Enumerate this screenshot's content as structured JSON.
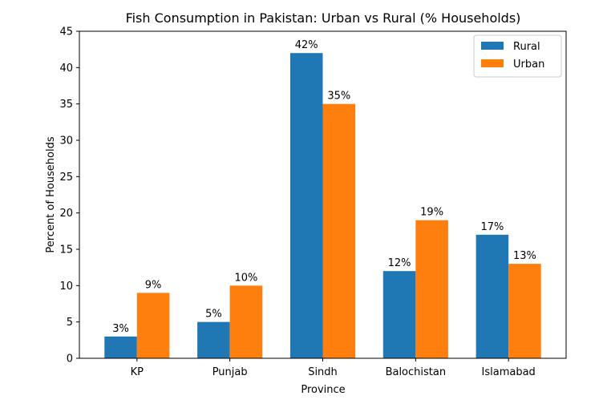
{
  "chart_data": {
    "type": "bar",
    "title": "Fish Consumption in Pakistan: Urban vs Rural (% Households)",
    "xlabel": "Province",
    "ylabel": "Percent of Households",
    "categories": [
      "KP",
      "Punjab",
      "Sindh",
      "Balochistan",
      "Islamabad"
    ],
    "series": [
      {
        "name": "Rural",
        "color": "#1f77b4",
        "values": [
          3,
          5,
          42,
          12,
          17
        ],
        "labels": [
          "3%",
          "5%",
          "42%",
          "12%",
          "17%"
        ]
      },
      {
        "name": "Urban",
        "color": "#ff7f0e",
        "values": [
          9,
          10,
          35,
          19,
          13
        ],
        "labels": [
          "9%",
          "10%",
          "35%",
          "19%",
          "13%"
        ]
      }
    ],
    "ylim": [
      0,
      45
    ],
    "yticks": [
      0,
      5,
      10,
      15,
      20,
      25,
      30,
      35,
      40,
      45
    ],
    "grid": false,
    "legend_position": "top-right"
  }
}
